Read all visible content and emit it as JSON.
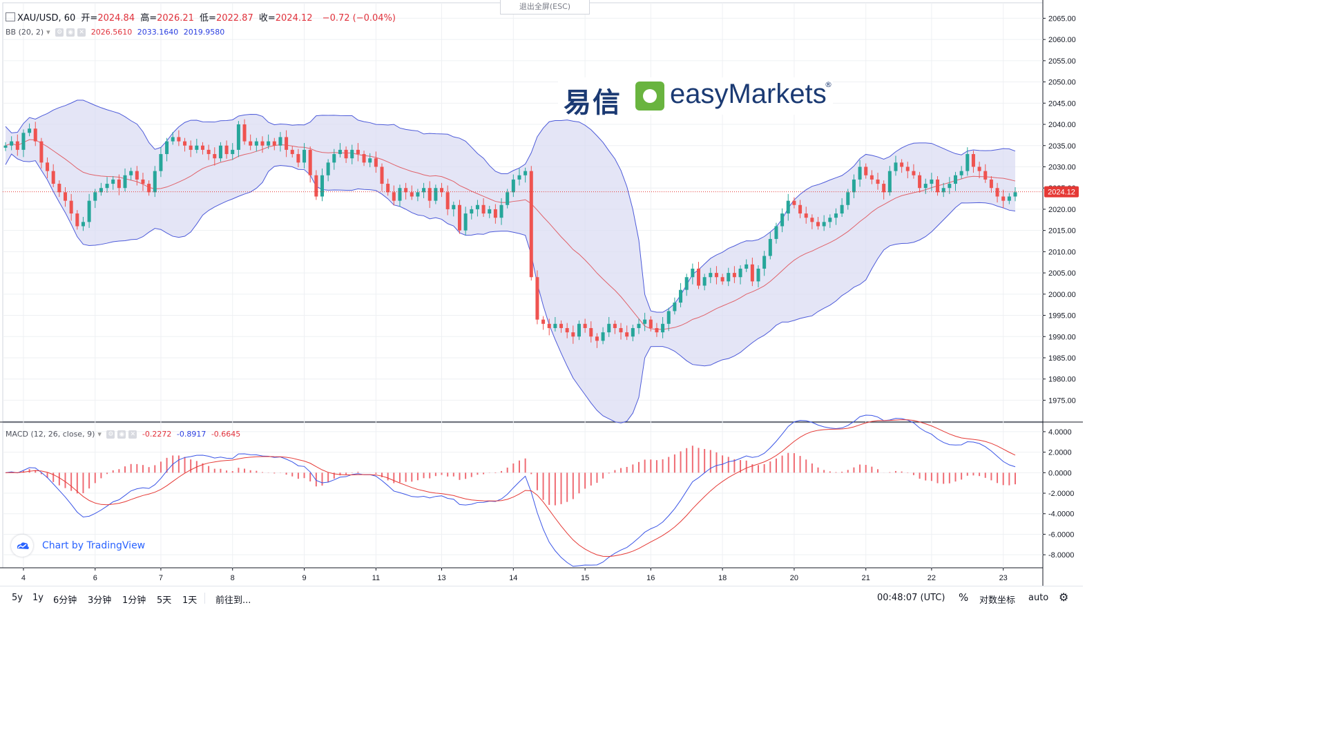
{
  "header": {
    "symbol": "XAU/USD, 60",
    "open_label": "开=",
    "open": "2024.84",
    "high_label": "高=",
    "high": "2026.21",
    "low_label": "低=",
    "low": "2022.87",
    "close_label": "收=",
    "close": "2024.12",
    "change": "−0.72 (−0.04%)"
  },
  "bb": {
    "label": "BB (20, 2)",
    "middle": "2026.5610",
    "upper": "2033.1640",
    "lower": "2019.9580"
  },
  "macd": {
    "label": "MACD (12, 26, close, 9)",
    "hist": "-0.2272",
    "macd": "-0.8917",
    "signal": "-0.6645"
  },
  "exit_fullscreen": "退出全屏(ESC)",
  "logo": {
    "cn": "易信",
    "en": "easyMarkets",
    "mark": "®"
  },
  "tv_badge": "Chart by TradingView",
  "last_price": "2024.12",
  "toolbar": {
    "ranges": [
      "5y",
      "1y",
      "6分钟",
      "3分钟",
      "1分钟",
      "5天",
      "1天"
    ],
    "goto": "前往到...",
    "time": "00:48:07 (UTC)",
    "percent": "%",
    "log": "对数坐标",
    "auto": "auto"
  },
  "chart_data": [
    {
      "type": "candlestick",
      "title": "XAU/USD, 60",
      "y_axis_ticks": [
        "2065.00",
        "2060.00",
        "2055.00",
        "2050.00",
        "2045.00",
        "2040.00",
        "2035.00",
        "2030.00",
        "2025.00",
        "2020.00",
        "2015.00",
        "2010.00",
        "2005.00",
        "2000.00",
        "1995.00",
        "1990.00",
        "1985.00",
        "1980.00",
        "1975.00"
      ],
      "ylim": [
        1971,
        2068
      ],
      "x_ticks": [
        "4",
        "6",
        "7",
        "8",
        "9",
        "11",
        "13",
        "14",
        "15",
        "16",
        "18",
        "20",
        "21",
        "22",
        "23"
      ],
      "last_price": 2024.12,
      "close_series": [
        2035,
        2036,
        2034,
        2038,
        2039,
        2036,
        2031,
        2029,
        2026,
        2024,
        2022,
        2019,
        2016,
        2017,
        2022,
        2024,
        2025,
        2026,
        2027,
        2025,
        2028,
        2029,
        2027,
        2026,
        2024,
        2029,
        2033,
        2036,
        2037,
        2036,
        2035,
        2034,
        2035,
        2034,
        2033,
        2032,
        2035,
        2033,
        2034,
        2040,
        2036,
        2035,
        2036,
        2035,
        2036,
        2035,
        2037,
        2034,
        2033,
        2031,
        2034,
        2028,
        2023,
        2028,
        2031,
        2033,
        2034,
        2032,
        2034,
        2033,
        2031,
        2032,
        2030,
        2026,
        2024,
        2022,
        2025,
        2024,
        2023,
        2024,
        2025,
        2022,
        2025,
        2024,
        2020,
        2021,
        2015,
        2019,
        2020,
        2021,
        2019,
        2020,
        2018,
        2021,
        2024,
        2027,
        2028,
        2029,
        2004,
        1994,
        1993,
        1992,
        1993,
        1992,
        1991,
        1990,
        1993,
        1992,
        1990,
        1989,
        1991,
        1993,
        1992,
        1991,
        1990,
        1992,
        1993,
        1994,
        1992,
        1991,
        1993,
        1996,
        1998,
        2001,
        2004,
        2006,
        2002,
        2004,
        2005,
        2004,
        2003,
        2005,
        2004,
        2006,
        2007,
        2003,
        2006,
        2009,
        2013,
        2016,
        2019,
        2022,
        2021,
        2019,
        2018,
        2017,
        2016,
        2017,
        2018,
        2019,
        2021,
        2024,
        2027,
        2030,
        2028,
        2027,
        2026,
        2024,
        2029,
        2031,
        2030,
        2029,
        2028,
        2025,
        2026,
        2027,
        2024,
        2025,
        2026,
        2028,
        2029,
        2033,
        2030,
        2029,
        2027,
        2025,
        2023,
        2022,
        2023,
        2024
      ]
    },
    {
      "type": "macd",
      "title": "MACD (12, 26, close, 9)",
      "y_axis_ticks": [
        "4.0000",
        "2.0000",
        "0.0000",
        "-2.0000",
        "-4.0000",
        "-6.0000",
        "-8.0000"
      ],
      "ylim": [
        -9,
        4.6
      ],
      "values": {
        "hist": -0.2272,
        "macd": -0.8917,
        "signal": -0.6645
      }
    }
  ],
  "colors": {
    "up": "#26a69a",
    "down": "#ef5350",
    "bb_fill": "#d8daf2",
    "bb_band": "#4c5ad9",
    "bb_mid": "#e0626a",
    "macd": "#3a55e6",
    "signal": "#e53935",
    "hist": "#ef6b73",
    "price_line": "#e53935"
  }
}
